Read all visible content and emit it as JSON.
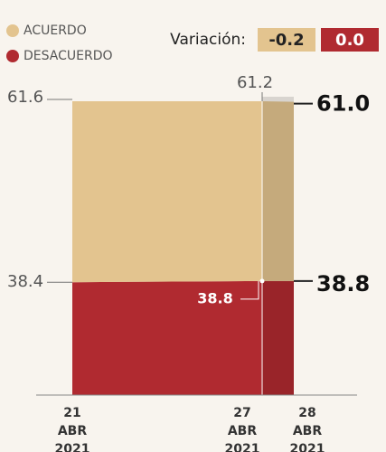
{
  "chart_data": {
    "type": "stacked_area",
    "categories": [
      "21 ABR 2021",
      "27 ABR 2021",
      "28 ABR 2021"
    ],
    "series": [
      {
        "name": "DESACUERDO",
        "color": "#b02a30",
        "values": [
          38.4,
          38.8,
          38.8
        ],
        "value_labels": [
          "38.4",
          "38.8",
          "38.8"
        ]
      },
      {
        "name": "ACUERDO",
        "color": "#e3c48f",
        "values": [
          61.6,
          61.2,
          61.0
        ],
        "value_labels": [
          "61.6",
          "61.2",
          "61.0"
        ]
      }
    ],
    "variation": {
      "label": "Variación:",
      "values": [
        -0.2,
        0.0
      ],
      "value_labels": [
        "-0.2",
        "0.0"
      ]
    }
  }
}
